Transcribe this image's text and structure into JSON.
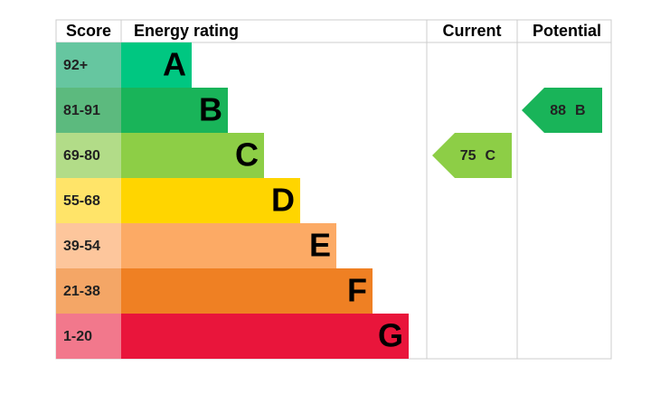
{
  "header": {
    "score": "Score",
    "rating": "Energy rating",
    "current": "Current",
    "potential": "Potential"
  },
  "bands": [
    {
      "score": "92+",
      "letter": "A",
      "color": "#00c781",
      "score_color": "#66c6a0"
    },
    {
      "score": "81-91",
      "letter": "B",
      "color": "#19b459",
      "score_color": "#5cba7e"
    },
    {
      "score": "69-80",
      "letter": "C",
      "color": "#8dce46",
      "score_color": "#b2dc88"
    },
    {
      "score": "55-68",
      "letter": "D",
      "color": "#ffd500",
      "score_color": "#ffe469"
    },
    {
      "score": "39-54",
      "letter": "E",
      "color": "#fcaa65",
      "score_color": "#fdc69c"
    },
    {
      "score": "21-38",
      "letter": "F",
      "color": "#ef8023",
      "score_color": "#f4a666"
    },
    {
      "score": "1-20",
      "letter": "G",
      "color": "#e9153b",
      "score_color": "#f2788c"
    }
  ],
  "current": {
    "value": "75",
    "letter": "C"
  },
  "potential": {
    "value": "88",
    "letter": "B"
  }
}
